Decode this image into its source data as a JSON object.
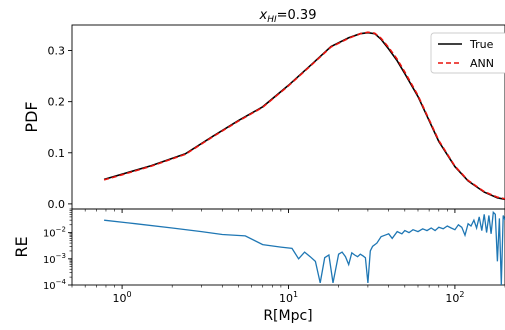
{
  "chart_data": [
    {
      "type": "line",
      "title_main": "x",
      "title_sub": "HI",
      "title_rest": "=0.39",
      "ylabel": "PDF",
      "xscale": "log",
      "xlim": [
        0.5,
        200
      ],
      "ylim": [
        -0.01,
        0.35
      ],
      "yticks": [
        0.0,
        0.1,
        0.2,
        0.3
      ],
      "ytick_labels": [
        "0.0",
        "0.1",
        "0.2",
        "0.3"
      ],
      "legend": {
        "placement": "top-right",
        "entries": [
          "True",
          "ANN"
        ]
      },
      "series": [
        {
          "name": "True",
          "color": "#000000",
          "style": "solid",
          "x": [
            0.78,
            1.0,
            1.5,
            2.4,
            3.5,
            5.0,
            7.0,
            10,
            14,
            18,
            23,
            27,
            30,
            33,
            36,
            40,
            45,
            50,
            60,
            70,
            80,
            100,
            120,
            150,
            180,
            200
          ],
          "y": [
            0.048,
            0.058,
            0.075,
            0.098,
            0.132,
            0.163,
            0.19,
            0.232,
            0.275,
            0.308,
            0.325,
            0.333,
            0.335,
            0.333,
            0.322,
            0.303,
            0.28,
            0.255,
            0.21,
            0.163,
            0.122,
            0.073,
            0.045,
            0.023,
            0.012,
            0.009
          ]
        },
        {
          "name": "ANN",
          "color": "#e8120c",
          "style": "dashed",
          "x": [
            0.78,
            1.0,
            1.5,
            2.4,
            3.5,
            5.0,
            7.0,
            10,
            14,
            18,
            23,
            27,
            30,
            33,
            36,
            40,
            45,
            50,
            60,
            70,
            80,
            100,
            120,
            150,
            180,
            200
          ],
          "y": [
            0.047,
            0.057,
            0.074,
            0.097,
            0.131,
            0.162,
            0.189,
            0.231,
            0.274,
            0.307,
            0.324,
            0.333,
            0.336,
            0.334,
            0.324,
            0.306,
            0.283,
            0.258,
            0.212,
            0.165,
            0.124,
            0.074,
            0.046,
            0.024,
            0.013,
            0.01
          ]
        }
      ]
    },
    {
      "type": "line",
      "xlabel": "R[Mpc]",
      "ylabel": "RE",
      "xscale": "log",
      "yscale": "log",
      "xlim": [
        0.5,
        200
      ],
      "ylim": [
        0.0001,
        0.08
      ],
      "xticks": [
        1,
        10,
        100
      ],
      "xtick_labels": [
        {
          "base": "10",
          "exp": "0"
        },
        {
          "base": "10",
          "exp": "1"
        },
        {
          "base": "10",
          "exp": "2"
        }
      ],
      "yticks": [
        0.01,
        0.001,
        0.0001
      ],
      "ytick_labels": [
        {
          "base": "10",
          "exp": "−2"
        },
        {
          "base": "10",
          "exp": "−3"
        },
        {
          "base": "10",
          "exp": "−4"
        }
      ],
      "series": [
        {
          "color": "#1f77b4",
          "x": [
            0.78,
            1.2,
            2.0,
            3.0,
            4.0,
            5.5,
            7.0,
            9.0,
            10.5,
            11.5,
            12.5,
            13.5,
            14.5,
            15.5,
            16.5,
            17.5,
            18.5,
            20,
            21,
            22,
            23,
            24,
            25,
            26,
            27,
            28,
            29,
            30,
            31,
            32,
            34,
            36,
            38,
            40,
            42,
            45,
            48,
            50,
            53,
            56,
            60,
            64,
            68,
            72,
            76,
            80,
            85,
            90,
            95,
            100,
            105,
            110,
            115,
            120,
            125,
            130,
            135,
            140,
            145,
            150,
            155,
            160,
            165,
            170,
            175,
            180,
            185,
            190,
            195,
            200
          ],
          "y": [
            0.03,
            0.022,
            0.015,
            0.011,
            0.0085,
            0.0075,
            0.0035,
            0.0028,
            0.0025,
            0.001,
            0.0018,
            0.0012,
            0.0008,
            0.00012,
            0.0011,
            0.0014,
            0.00012,
            0.0015,
            0.0018,
            0.0012,
            0.0006,
            0.0017,
            0.0014,
            0.0012,
            0.0015,
            0.0013,
            0.0011,
            0.00012,
            0.002,
            0.003,
            0.004,
            0.007,
            0.008,
            0.009,
            0.006,
            0.011,
            0.009,
            0.012,
            0.01,
            0.013,
            0.011,
            0.014,
            0.012,
            0.015,
            0.012,
            0.016,
            0.014,
            0.018,
            0.015,
            0.013,
            0.02,
            0.016,
            0.008,
            0.022,
            0.018,
            0.03,
            0.015,
            0.04,
            0.012,
            0.05,
            0.01,
            0.045,
            0.009,
            0.06,
            0.05,
            0.0008,
            0.035,
            0.0001,
            0.045,
            0.03
          ]
        }
      ]
    }
  ]
}
